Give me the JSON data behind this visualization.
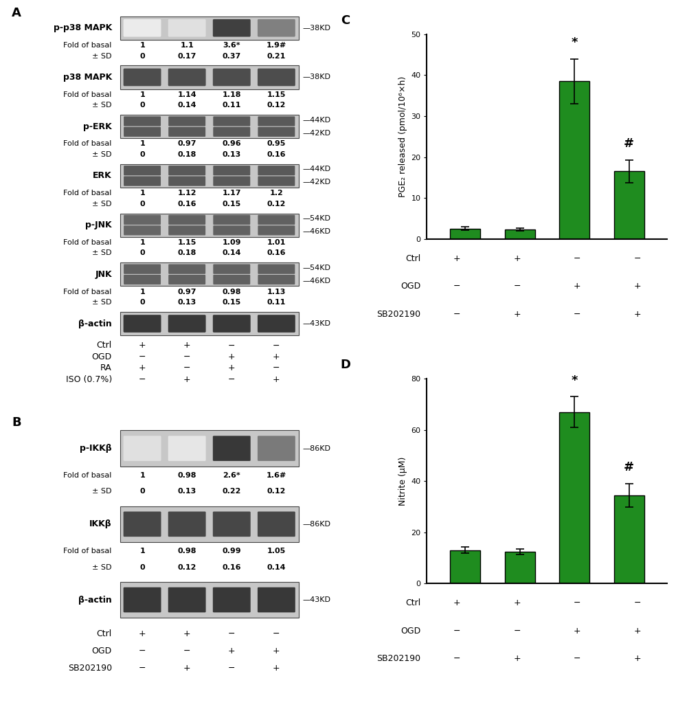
{
  "panel_A_label": "A",
  "panel_B_label": "B",
  "panel_C_label": "C",
  "panel_D_label": "D",
  "panel_A": {
    "blots": [
      {
        "label": "p-p38 MAPK",
        "kd_labels": [
          "38KD"
        ],
        "kd_single": true,
        "fold_values": [
          "1",
          "1.1",
          "3.6*",
          "1.9#"
        ],
        "sd_values": [
          "0",
          "0.17",
          "0.37",
          "0.21"
        ],
        "band_intensities": [
          0.92,
          0.88,
          0.25,
          0.5
        ],
        "is_double": false
      },
      {
        "label": "p38 MAPK",
        "kd_labels": [
          "38KD"
        ],
        "kd_single": true,
        "fold_values": [
          "1",
          "1.14",
          "1.18",
          "1.15"
        ],
        "sd_values": [
          "0",
          "0.14",
          "0.11",
          "0.12"
        ],
        "band_intensities": [
          0.3,
          0.3,
          0.3,
          0.3
        ],
        "is_double": false
      },
      {
        "label": "p-ERK",
        "kd_labels": [
          "44KD",
          "42KD"
        ],
        "kd_single": false,
        "fold_values": [
          "1",
          "0.97",
          "0.96",
          "0.95"
        ],
        "sd_values": [
          "0",
          "0.18",
          "0.13",
          "0.16"
        ],
        "band_intensities": [
          0.35,
          0.35,
          0.35,
          0.35
        ],
        "is_double": true
      },
      {
        "label": "ERK",
        "kd_labels": [
          "44KD",
          "42KD"
        ],
        "kd_single": false,
        "fold_values": [
          "1",
          "1.12",
          "1.17",
          "1.2"
        ],
        "sd_values": [
          "0",
          "0.16",
          "0.15",
          "0.12"
        ],
        "band_intensities": [
          0.35,
          0.35,
          0.35,
          0.35
        ],
        "is_double": true
      },
      {
        "label": "p-JNK",
        "kd_labels": [
          "54KD",
          "46KD"
        ],
        "kd_single": false,
        "fold_values": [
          "1",
          "1.15",
          "1.09",
          "1.01"
        ],
        "sd_values": [
          "0",
          "0.18",
          "0.14",
          "0.16"
        ],
        "band_intensities": [
          0.4,
          0.38,
          0.38,
          0.38
        ],
        "is_double": true
      },
      {
        "label": "JNK",
        "kd_labels": [
          "54KD",
          "46KD"
        ],
        "kd_single": false,
        "fold_values": [
          "1",
          "0.97",
          "0.98",
          "1.13"
        ],
        "sd_values": [
          "0",
          "0.13",
          "0.15",
          "0.11"
        ],
        "band_intensities": [
          0.38,
          0.38,
          0.38,
          0.38
        ],
        "is_double": true
      },
      {
        "label": "β-actin",
        "kd_labels": [
          "43KD"
        ],
        "kd_single": true,
        "fold_values": null,
        "sd_values": null,
        "band_intensities": [
          0.22,
          0.22,
          0.22,
          0.22
        ],
        "is_double": false
      }
    ],
    "conditions_rows": [
      {
        "label": "Ctrl",
        "values": [
          "+",
          "+",
          "−",
          "−"
        ]
      },
      {
        "label": "OGD",
        "values": [
          "−",
          "−",
          "+",
          "+"
        ]
      },
      {
        "label": "RA",
        "values": [
          "+",
          "−",
          "+",
          "−"
        ]
      },
      {
        "label": "ISO (0.7%)",
        "values": [
          "−",
          "+",
          "−",
          "+"
        ]
      }
    ]
  },
  "panel_B": {
    "blots": [
      {
        "label": "p-IKKβ",
        "kd_labels": [
          "86KD"
        ],
        "kd_single": true,
        "fold_values": [
          "1",
          "0.98",
          "2.6*",
          "1.6#"
        ],
        "sd_values": [
          "0",
          "0.13",
          "0.22",
          "0.12"
        ],
        "band_intensities": [
          0.88,
          0.9,
          0.22,
          0.48
        ],
        "is_double": false
      },
      {
        "label": "IKKβ",
        "kd_labels": [
          "86KD"
        ],
        "kd_single": true,
        "fold_values": [
          "1",
          "0.98",
          "0.99",
          "1.05"
        ],
        "sd_values": [
          "0",
          "0.12",
          "0.16",
          "0.14"
        ],
        "band_intensities": [
          0.28,
          0.28,
          0.28,
          0.28
        ],
        "is_double": false
      },
      {
        "label": "β-actin",
        "kd_labels": [
          "43KD"
        ],
        "kd_single": true,
        "fold_values": null,
        "sd_values": null,
        "band_intensities": [
          0.22,
          0.22,
          0.22,
          0.22
        ],
        "is_double": false
      }
    ],
    "conditions_rows": [
      {
        "label": "Ctrl",
        "values": [
          "+",
          "+",
          "−",
          "−"
        ]
      },
      {
        "label": "OGD",
        "values": [
          "−",
          "−",
          "+",
          "+"
        ]
      },
      {
        "label": "SB202190",
        "values": [
          "−",
          "+",
          "−",
          "+"
        ]
      }
    ]
  },
  "panel_C": {
    "ylabel": "PGE₂ released (pmol/10⁶×h)",
    "ylim": [
      0,
      50
    ],
    "yticks": [
      0,
      10,
      20,
      30,
      40,
      50
    ],
    "bar_values": [
      2.5,
      2.3,
      38.5,
      16.5
    ],
    "bar_errors": [
      0.4,
      0.3,
      5.5,
      2.8
    ],
    "bar_color": "#1f8c1f",
    "bar_width": 0.55,
    "significance": {
      "bar3": "*",
      "bar4": "#"
    },
    "conditions_rows": [
      {
        "label": "Ctrl",
        "values": [
          "+",
          "+",
          "−",
          "−"
        ]
      },
      {
        "label": "OGD",
        "values": [
          "−",
          "−",
          "+",
          "+"
        ]
      },
      {
        "label": "SB202190",
        "values": [
          "−",
          "+",
          "−",
          "+"
        ]
      }
    ]
  },
  "panel_D": {
    "ylabel": "Nitrite (μM)",
    "ylim": [
      0,
      80
    ],
    "yticks": [
      0,
      20,
      40,
      60,
      80
    ],
    "bar_values": [
      13.0,
      12.5,
      67.0,
      34.5
    ],
    "bar_errors": [
      1.2,
      1.0,
      6.0,
      4.5
    ],
    "bar_color": "#1f8c1f",
    "bar_width": 0.55,
    "significance": {
      "bar3": "*",
      "bar4": "#"
    },
    "conditions_rows": [
      {
        "label": "Ctrl",
        "values": [
          "+",
          "+",
          "−",
          "−"
        ]
      },
      {
        "label": "OGD",
        "values": [
          "−",
          "−",
          "+",
          "+"
        ]
      },
      {
        "label": "SB202190",
        "values": [
          "−",
          "+",
          "−",
          "+"
        ]
      }
    ]
  },
  "font_sizes": {
    "panel_label": 13,
    "blot_label": 9,
    "kd_label": 8,
    "fold_label": 8,
    "condition_label": 9,
    "condition_value": 9,
    "axis_label": 9,
    "tick_label": 8,
    "significance": 13
  },
  "background_color": "#ffffff"
}
